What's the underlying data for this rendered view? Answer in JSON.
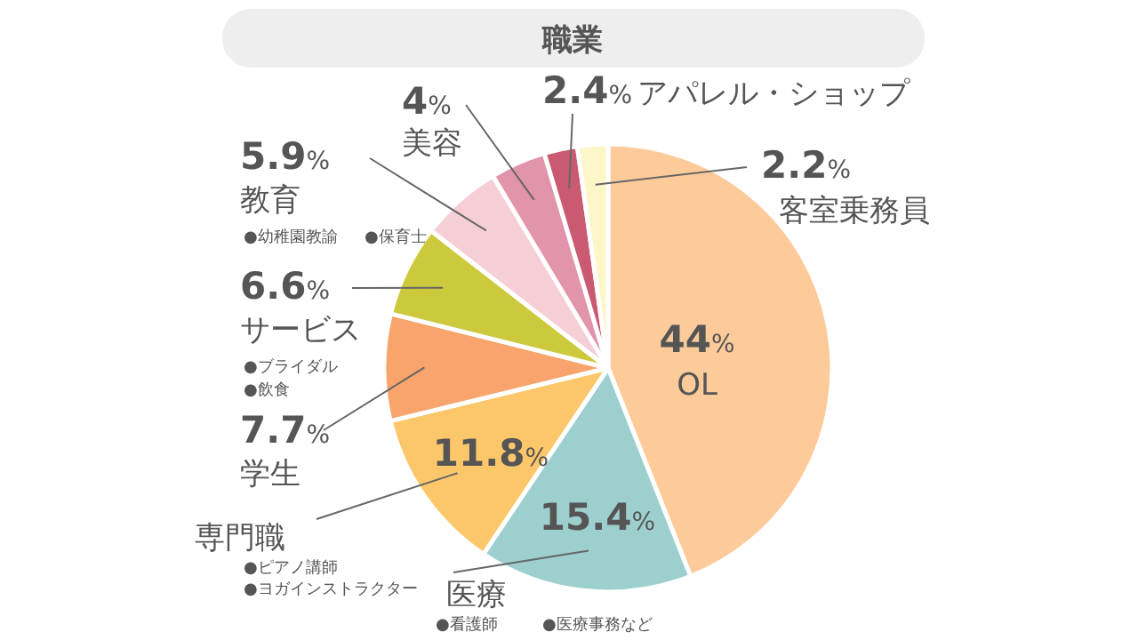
{
  "chart_data": {
    "type": "pie",
    "title": "職業",
    "categories": [
      "OL",
      "医療",
      "専門職",
      "学生",
      "サービス",
      "教育",
      "美容",
      "アパレル・ショップ",
      "客室乗務員"
    ],
    "values": [
      44,
      15.4,
      11.8,
      7.7,
      6.6,
      5.9,
      4,
      2.4,
      2.2
    ],
    "colors": [
      "#fdca9a",
      "#9dcfcf",
      "#fcc76a",
      "#f8a46c",
      "#cdc93d",
      "#f5ced6",
      "#e294ab",
      "#c95a72",
      "#fdf6c9"
    ],
    "value_labels": [
      "44%",
      "15.4%",
      "11.8%",
      "7.7%",
      "6.6%",
      "5.9%",
      "4%",
      "2.4%",
      "2.2%"
    ],
    "annotations": [
      "●看護師",
      "●医療事務など",
      "●ピアノ講師",
      "●ヨガインストラクター",
      "●ブライダル",
      "●飲食",
      "●幼稚園教諭",
      "●保育士"
    ]
  }
}
